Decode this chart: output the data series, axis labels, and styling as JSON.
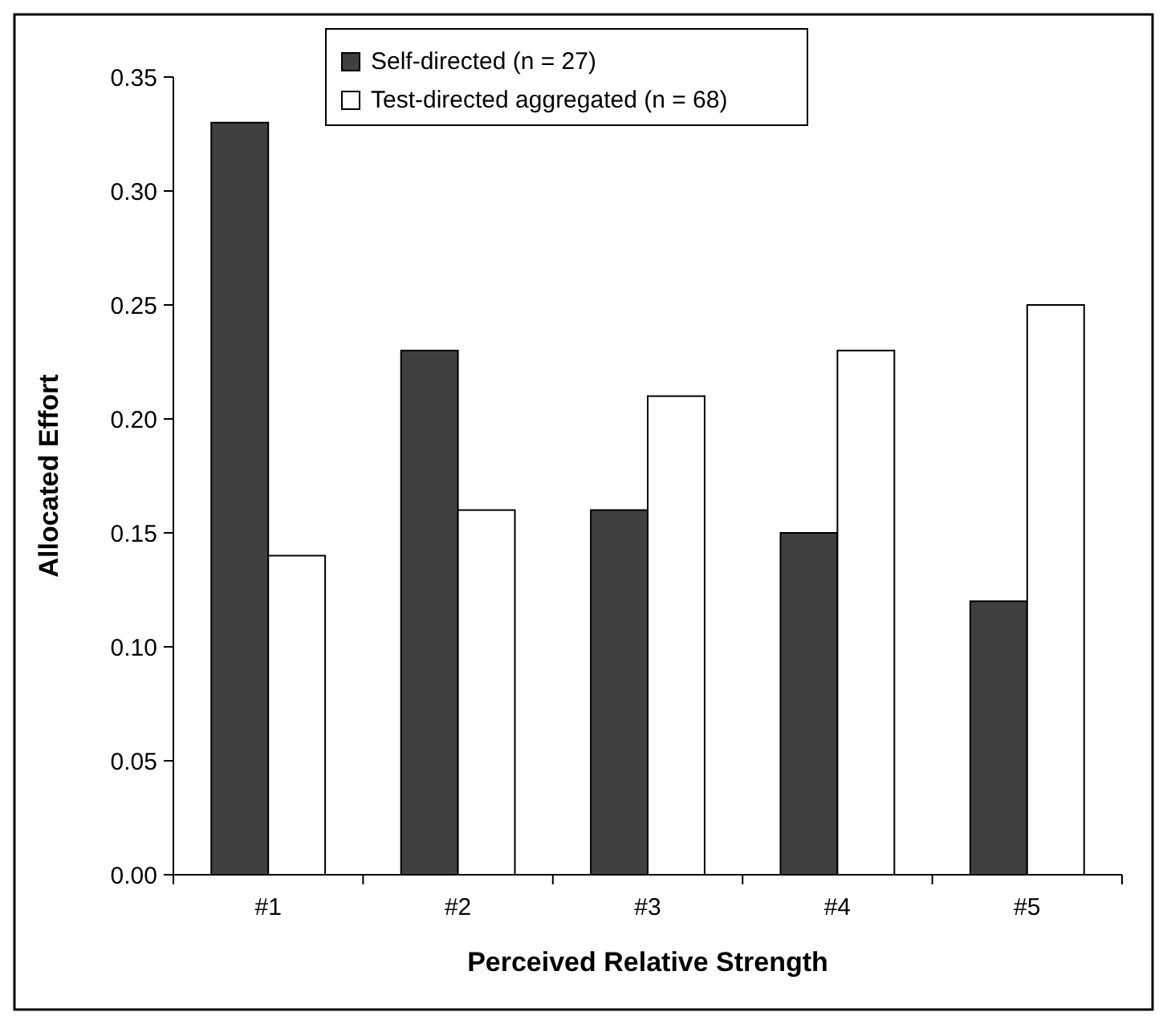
{
  "chart_data": {
    "type": "bar",
    "xlabel": "Perceived Relative Strength",
    "ylabel": "Allocated Effort",
    "categories": [
      "#1",
      "#2",
      "#3",
      "#4",
      "#5"
    ],
    "series": [
      {
        "name": "Self-directed (n = 27)",
        "color": "#404040",
        "values": [
          0.33,
          0.23,
          0.16,
          0.15,
          0.12
        ]
      },
      {
        "name": "Test-directed aggregated (n = 68)",
        "color": "#ffffff",
        "values": [
          0.14,
          0.16,
          0.21,
          0.23,
          0.25
        ]
      }
    ],
    "ylim": [
      0,
      0.35
    ],
    "yticks": [
      {
        "value": 0,
        "label": "0.00"
      },
      {
        "value": 0.05,
        "label": "0.05"
      },
      {
        "value": 0.1,
        "label": "0.10"
      },
      {
        "value": 0.15,
        "label": "0.15"
      },
      {
        "value": 0.2,
        "label": "0.20"
      },
      {
        "value": 0.25,
        "label": "0.25"
      },
      {
        "value": 0.3,
        "label": "0.30"
      },
      {
        "value": 0.35,
        "label": "0.35"
      }
    ],
    "grid": false,
    "legend": "top"
  }
}
